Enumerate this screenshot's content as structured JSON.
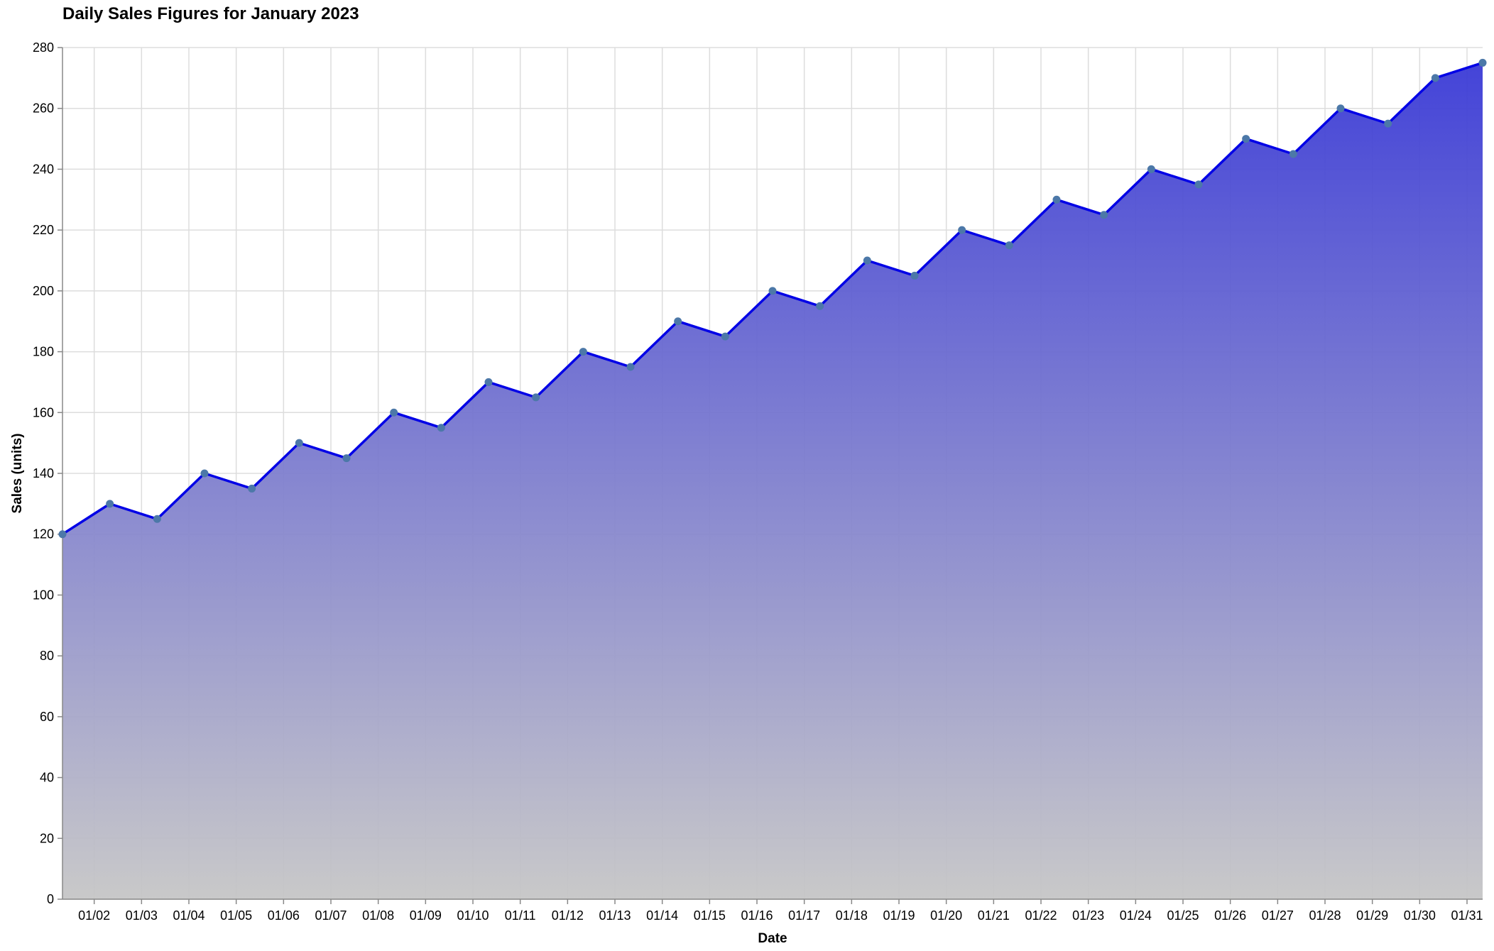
{
  "chart_data": {
    "type": "area",
    "title": "Daily Sales Figures for January 2023",
    "xlabel": "Date",
    "ylabel": "Sales (units)",
    "x_start": "2023-01-01",
    "x_end": "2023-01-31",
    "ylim": [
      0,
      280
    ],
    "y_ticks": [
      0,
      20,
      40,
      60,
      80,
      100,
      120,
      140,
      160,
      180,
      200,
      220,
      240,
      260,
      280
    ],
    "x_tick_labels": [
      "01/02",
      "01/03",
      "01/04",
      "01/05",
      "01/06",
      "01/07",
      "01/08",
      "01/09",
      "01/10",
      "01/11",
      "01/12",
      "01/13",
      "01/14",
      "01/15",
      "01/16",
      "01/17",
      "01/18",
      "01/19",
      "01/20",
      "01/21",
      "01/22",
      "01/23",
      "01/24",
      "01/25",
      "01/26",
      "01/27",
      "01/28",
      "01/29",
      "01/30",
      "01/31"
    ],
    "grid": true,
    "legend": "none",
    "series": [
      {
        "points": [
          {
            "x": "2023-01-01",
            "y": 120
          },
          {
            "x": "2023-01-02",
            "y": 130
          },
          {
            "x": "2023-01-03",
            "y": 125
          },
          {
            "x": "2023-01-04",
            "y": 140
          },
          {
            "x": "2023-01-05",
            "y": 135
          },
          {
            "x": "2023-01-06",
            "y": 150
          },
          {
            "x": "2023-01-07",
            "y": 145
          },
          {
            "x": "2023-01-08",
            "y": 160
          },
          {
            "x": "2023-01-09",
            "y": 155
          },
          {
            "x": "2023-01-10",
            "y": 170
          },
          {
            "x": "2023-01-11",
            "y": 165
          },
          {
            "x": "2023-01-12",
            "y": 180
          },
          {
            "x": "2023-01-13",
            "y": 175
          },
          {
            "x": "2023-01-14",
            "y": 190
          },
          {
            "x": "2023-01-15",
            "y": 185
          },
          {
            "x": "2023-01-16",
            "y": 200
          },
          {
            "x": "2023-01-17",
            "y": 195
          },
          {
            "x": "2023-01-18",
            "y": 210
          },
          {
            "x": "2023-01-19",
            "y": 205
          },
          {
            "x": "2023-01-20",
            "y": 220
          },
          {
            "x": "2023-01-21",
            "y": 215
          },
          {
            "x": "2023-01-22",
            "y": 230
          },
          {
            "x": "2023-01-23",
            "y": 225
          },
          {
            "x": "2023-01-24",
            "y": 240
          },
          {
            "x": "2023-01-25",
            "y": 235
          },
          {
            "x": "2023-01-26",
            "y": 250
          },
          {
            "x": "2023-01-27",
            "y": 245
          },
          {
            "x": "2023-01-28",
            "y": 260
          },
          {
            "x": "2023-01-29",
            "y": 255
          },
          {
            "x": "2023-01-30",
            "y": 270
          },
          {
            "x": "2023-01-31",
            "y": 275
          }
        ]
      }
    ],
    "colors": {
      "line": "#0000e6",
      "point": "#4c78a8",
      "area_top": "#3a3ad6",
      "area_bottom": "#c6c6c6",
      "grid": "#dddddd",
      "axis": "#888888"
    }
  }
}
